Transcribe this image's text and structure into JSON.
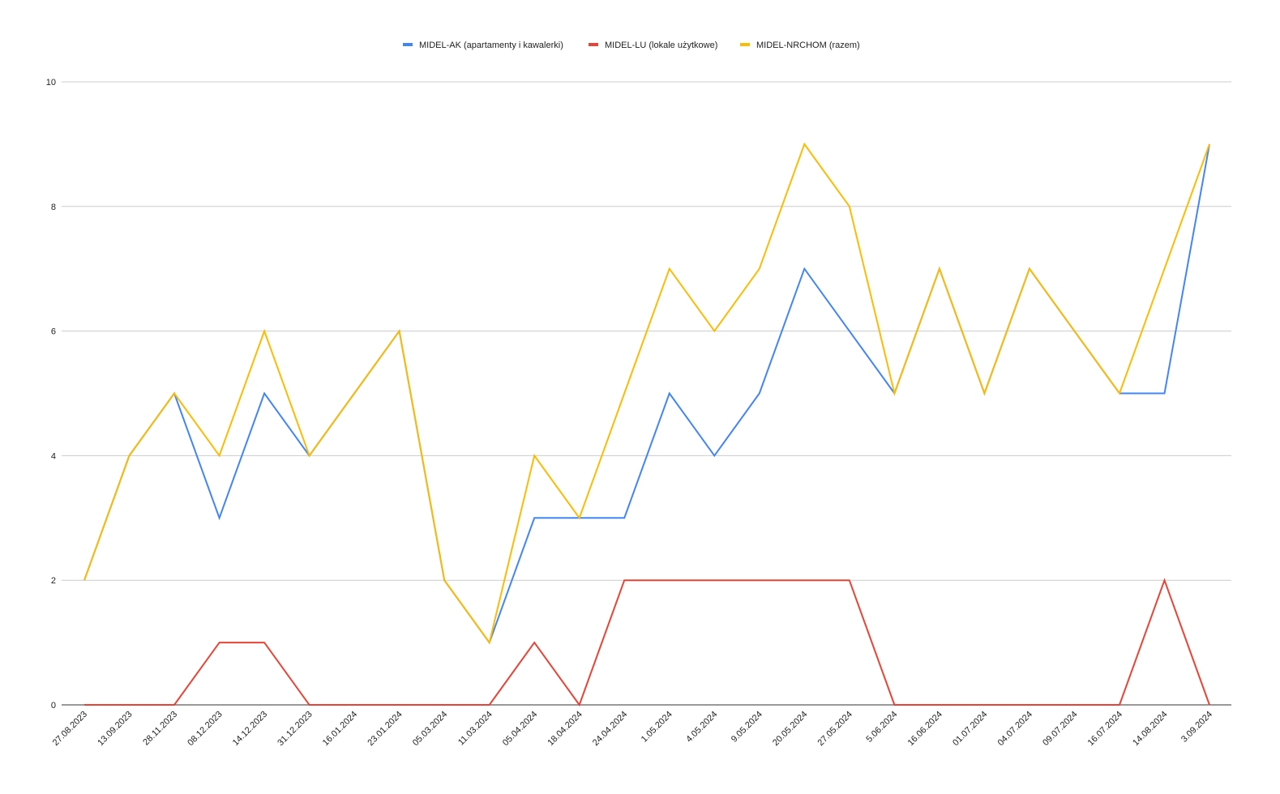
{
  "chart_data": {
    "type": "line",
    "title": "",
    "xlabel": "",
    "ylabel": "",
    "ylim": [
      0,
      10
    ],
    "yticks": [
      0,
      2,
      4,
      6,
      8,
      10
    ],
    "grid": true,
    "legend_position": "top",
    "categories": [
      "27.08.2023",
      "13.09.2023",
      "28.11.2023",
      "08.12.2023",
      "14.12.2023",
      "31.12.2023",
      "16.01.2024",
      "23.01.2024",
      "05.03.2024",
      "11.03.2024",
      "05.04.2024",
      "18.04.2024",
      "24.04.2024",
      "1.05.2024",
      "4.05.2024",
      "9.05.2024",
      "20.05.2024",
      "27.05.2024",
      "5.06.2024",
      "16.06.2024",
      "01.07.2024",
      "04.07.2024",
      "09.07.2024",
      "16.07.2024",
      "14.08.2024",
      "3.09.2024"
    ],
    "series": [
      {
        "name": "MIDEL-AK (apartamenty i kawalerki)",
        "color": "#4285f4",
        "values": [
          2,
          4,
          5,
          3,
          5,
          4,
          5,
          6,
          2,
          1,
          3,
          3,
          3,
          5,
          4,
          5,
          7,
          6,
          5,
          7,
          5,
          7,
          6,
          5,
          5,
          9
        ]
      },
      {
        "name": "MIDEL-LU (lokale użytkowe)",
        "color": "#ea4335",
        "values": [
          0,
          0,
          0,
          1,
          1,
          0,
          0,
          0,
          0,
          0,
          1,
          0,
          2,
          2,
          2,
          2,
          2,
          2,
          0,
          0,
          0,
          0,
          0,
          0,
          2,
          0
        ]
      },
      {
        "name": "MIDEL-NRCHOM (razem)",
        "color": "#fbbc04",
        "values": [
          2,
          4,
          5,
          4,
          6,
          4,
          5,
          6,
          2,
          1,
          4,
          3,
          5,
          7,
          6,
          7,
          9,
          8,
          5,
          7,
          5,
          7,
          6,
          5,
          7,
          9
        ]
      }
    ],
    "colors": {
      "grid": "#cccccc",
      "axis": "#333333",
      "text": "#222222"
    }
  }
}
